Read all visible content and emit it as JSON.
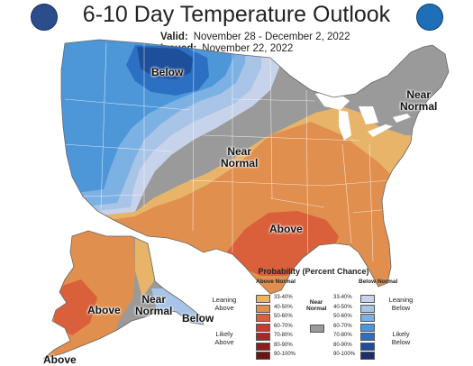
{
  "title": "6-10 Day Temperature Outlook",
  "valid": {
    "label": "Valid:",
    "value": "November 28 - December 2, 2022"
  },
  "issued": {
    "label": "Issued:",
    "value": "November 22, 2022"
  },
  "logos": {
    "left": "department-of-commerce-seal",
    "right": "noaa-logo"
  },
  "map_labels": {
    "below_west": "Below",
    "near_normal_central_1": "Near",
    "near_normal_central_2": "Normal",
    "near_normal_ne_1": "Near",
    "near_normal_ne_2": "Normal",
    "above_south": "Above",
    "above_alaska": "Above",
    "near_normal_alaska_1": "Near",
    "near_normal_alaska_2": "Normal",
    "below_alaska": "Below",
    "above_aleutians": "Above"
  },
  "legend": {
    "title": "Probability (Percent Chance)",
    "above_header": "Above Normal",
    "below_header": "Below Normal",
    "near_header_1": "Near",
    "near_header_2": "Normal",
    "leaning_above_1": "Leaning",
    "leaning_above_2": "Above",
    "likely_above_1": "Likely",
    "likely_above_2": "Above",
    "leaning_below_1": "Leaning",
    "leaning_below_2": "Below",
    "likely_below_1": "Likely",
    "likely_below_2": "Below",
    "ranges": [
      "33-40%",
      "40-50%",
      "50-60%",
      "60-70%",
      "70-80%",
      "80-90%",
      "90-100%"
    ],
    "above_colors": [
      "#e8b46a",
      "#e08f4e",
      "#d9603a",
      "#c73c2c",
      "#a82828",
      "#8c1e1e",
      "#6a1515"
    ],
    "below_colors": [
      "#c7d3ea",
      "#a8c4e6",
      "#7cb1e3",
      "#4d97d8",
      "#2b70c2",
      "#1e4f9a",
      "#1c2e6e"
    ],
    "near_color": "#9a9a9a"
  },
  "colors": {
    "ocean": "#ffffff",
    "near_normal": "#9a9a9a",
    "above_33_40": "#e8b46a",
    "above_40_50": "#e08f4e",
    "above_50_60": "#d9603a",
    "below_33_40": "#c7d3ea",
    "below_40_50": "#a8c4e6",
    "below_50_60": "#7cb1e3",
    "below_60_70": "#4d97d8",
    "below_70_80": "#2b70c2",
    "below_80_90": "#1e4f9a"
  }
}
